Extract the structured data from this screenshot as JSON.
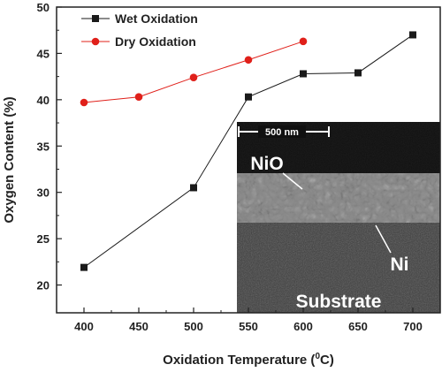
{
  "chart_data": {
    "type": "line",
    "xlabel_main": "Oxidation Temperature (",
    "xlabel_super": "0",
    "xlabel_end": "C)",
    "ylabel": "Oxygen Content (%)",
    "xlim": [
      375,
      725
    ],
    "ylim": [
      17,
      50
    ],
    "xticks": [
      "400",
      "450",
      "500",
      "550",
      "600",
      "650",
      "700"
    ],
    "yticks": [
      "20",
      "25",
      "30",
      "35",
      "40",
      "45",
      "50"
    ],
    "legend_position": "top-left",
    "series": [
      {
        "name": "Wet Oxidation",
        "color": "#1a1a1a",
        "marker": "square",
        "x": [
          400,
          500,
          550,
          600,
          650,
          700
        ],
        "y": [
          21.9,
          30.5,
          40.3,
          42.8,
          42.9,
          47.0
        ]
      },
      {
        "name": "Dry Oxidation",
        "color": "#e0201a",
        "marker": "circle",
        "x": [
          400,
          450,
          500,
          550,
          600
        ],
        "y": [
          39.7,
          40.3,
          42.4,
          44.3,
          46.3
        ]
      }
    ],
    "inset": {
      "scalebar_label": "500 nm",
      "layer_top": "NiO",
      "layer_middle": "Ni",
      "layer_bottom": "Substrate"
    }
  }
}
